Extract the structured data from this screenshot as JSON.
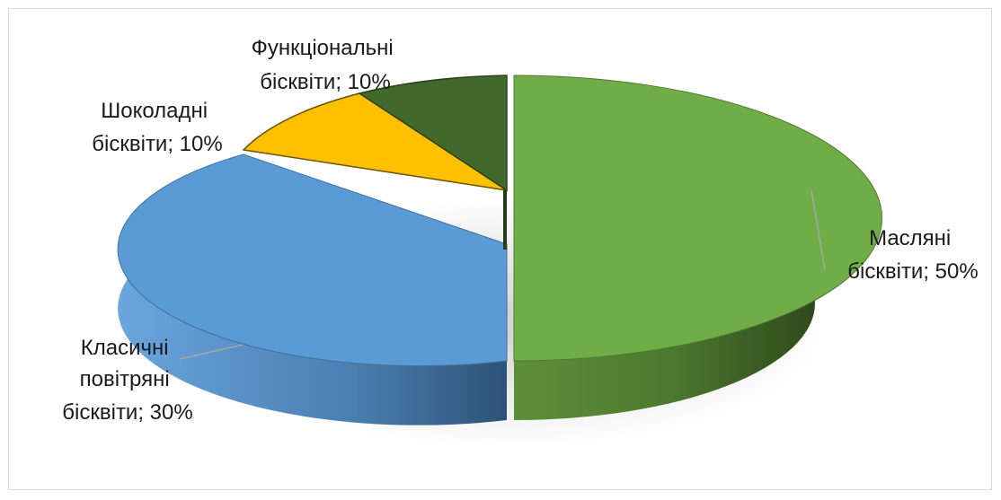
{
  "chart_data": {
    "type": "pie",
    "title": "",
    "slices": [
      {
        "key": "butter",
        "label_lines": [
          "Масляні",
          "бісквіти; 50%"
        ],
        "value": 50,
        "color": "#70ad47",
        "side_color": "#3d6427"
      },
      {
        "key": "classic",
        "label_lines": [
          "Класичні",
          "повітряні",
          "бісквіти; 30%"
        ],
        "value": 30,
        "color": "#5b9bd5",
        "side_color": "#345f89"
      },
      {
        "key": "chocolate",
        "label_lines": [
          "Шоколадні",
          "бісквіти; 10%"
        ],
        "value": 10,
        "color": "#ffc000",
        "side_color": "#b68a00"
      },
      {
        "key": "functional",
        "label_lines": [
          "Функціональні",
          "бісквіти; 10%"
        ],
        "value": 10,
        "color": "#43682b",
        "side_color": "#2a431b"
      }
    ],
    "legend": "none",
    "style": "3d-exploded"
  }
}
